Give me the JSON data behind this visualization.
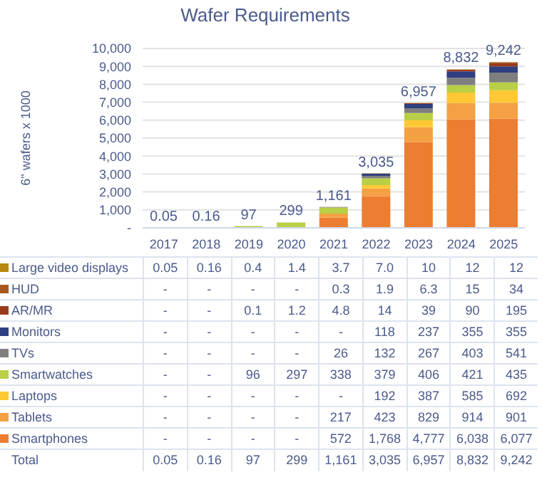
{
  "chart_data": {
    "type": "bar",
    "stacked": true,
    "title": "Wafer Requirements",
    "ylabel": "6\" wafers x 1000",
    "categories": [
      "2017",
      "2018",
      "2019",
      "2020",
      "2021",
      "2022",
      "2023",
      "2024",
      "2025"
    ],
    "ylim": [
      0,
      10000
    ],
    "yticks": [
      {
        "value": 0,
        "label": "-"
      },
      {
        "value": 1000,
        "label": "1,000"
      },
      {
        "value": 2000,
        "label": "2,000"
      },
      {
        "value": 3000,
        "label": "3,000"
      },
      {
        "value": 4000,
        "label": "4,000"
      },
      {
        "value": 5000,
        "label": "5,000"
      },
      {
        "value": 6000,
        "label": "6,000"
      },
      {
        "value": 7000,
        "label": "7,000"
      },
      {
        "value": 8000,
        "label": "8,000"
      },
      {
        "value": 9000,
        "label": "9,000"
      },
      {
        "value": 10000,
        "label": "10,000"
      }
    ],
    "grid": "y",
    "legend": "bottom",
    "series": [
      {
        "name": "Smartphones",
        "color": "#ed7d31",
        "values": [
          null,
          null,
          null,
          null,
          572,
          1768,
          4777,
          6038,
          6077
        ],
        "value_labels": [
          "-",
          "-",
          "-",
          "-",
          "572",
          "1,768",
          "4,777",
          "6,038",
          "6,077"
        ]
      },
      {
        "name": "Tablets",
        "color": "#f4a043",
        "values": [
          null,
          null,
          null,
          null,
          217,
          423,
          829,
          914,
          901
        ],
        "value_labels": [
          "-",
          "-",
          "-",
          "-",
          "217",
          "423",
          "829",
          "914",
          "901"
        ]
      },
      {
        "name": "Laptops",
        "color": "#ffc834",
        "values": [
          null,
          null,
          null,
          null,
          null,
          192,
          387,
          585,
          692
        ],
        "value_labels": [
          "-",
          "-",
          "-",
          "-",
          "-",
          "192",
          "387",
          "585",
          "692"
        ]
      },
      {
        "name": "Smartwatches",
        "color": "#b9cf45",
        "values": [
          null,
          null,
          96,
          297,
          338,
          379,
          406,
          421,
          435
        ],
        "value_labels": [
          "-",
          "-",
          "96",
          "297",
          "338",
          "379",
          "406",
          "421",
          "435"
        ]
      },
      {
        "name": "TVs",
        "color": "#7f7f7f",
        "values": [
          null,
          null,
          null,
          null,
          26,
          132,
          267,
          403,
          541
        ],
        "value_labels": [
          "-",
          "-",
          "-",
          "-",
          "26",
          "132",
          "267",
          "403",
          "541"
        ]
      },
      {
        "name": "Monitors",
        "color": "#2f3f80",
        "values": [
          null,
          null,
          null,
          null,
          null,
          118,
          237,
          355,
          355
        ],
        "value_labels": [
          "-",
          "-",
          "-",
          "-",
          "-",
          "118",
          "237",
          "355",
          "355"
        ]
      },
      {
        "name": "AR/MR",
        "color": "#9c3b1c",
        "values": [
          null,
          null,
          0.1,
          1.2,
          4.8,
          14,
          39,
          90,
          195
        ],
        "value_labels": [
          "-",
          "-",
          "0.1",
          "1.2",
          "4.8",
          "14",
          "39",
          "90",
          "195"
        ]
      },
      {
        "name": "HUD",
        "color": "#a8581c",
        "values": [
          null,
          null,
          null,
          null,
          0.3,
          1.9,
          6.3,
          15,
          34
        ],
        "value_labels": [
          "-",
          "-",
          "-",
          "-",
          "0.3",
          "1.9",
          "6.3",
          "15",
          "34"
        ]
      },
      {
        "name": "Large video displays",
        "color": "#b8880e",
        "values": [
          0.05,
          0.16,
          0.4,
          1.4,
          3.7,
          7.0,
          10,
          12,
          12
        ],
        "value_labels": [
          "0.05",
          "0.16",
          "0.4",
          "1.4",
          "3.7",
          "7.0",
          "10",
          "12",
          "12"
        ]
      }
    ],
    "annotations": [
      "Total"
    ],
    "totals": [
      "0.05",
      "0.16",
      "97",
      "299",
      "1,161",
      "3,035",
      "6,957",
      "8,832",
      "9,242"
    ]
  }
}
